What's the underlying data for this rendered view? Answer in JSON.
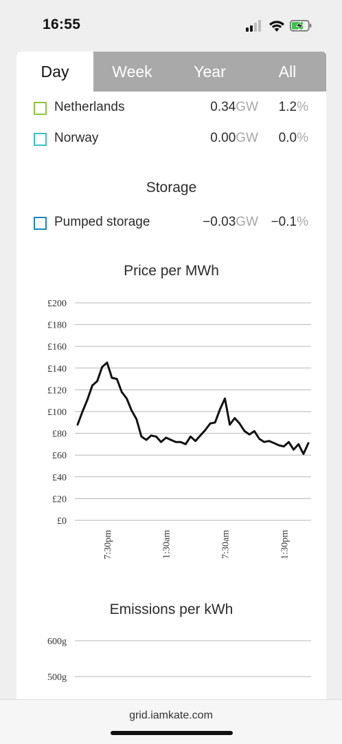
{
  "status": {
    "time": "16:55"
  },
  "tabs": [
    {
      "label": "Day",
      "active": true
    },
    {
      "label": "Week",
      "active": false
    },
    {
      "label": "Year",
      "active": false
    },
    {
      "label": "All",
      "active": false
    }
  ],
  "interconnectors": [
    {
      "name": "Netherlands",
      "value": "0.34",
      "unit": "GW",
      "percent": "1.2",
      "pct_unit": "%",
      "color": "#8cc63f"
    },
    {
      "name": "Norway",
      "value": "0.00",
      "unit": "GW",
      "percent": "0.0",
      "pct_unit": "%",
      "color": "#3cc0c0"
    }
  ],
  "storage": {
    "title": "Storage",
    "items": [
      {
        "name": "Pumped storage",
        "value": "−0.03",
        "unit": "GW",
        "percent": "−0.1",
        "pct_unit": "%",
        "color": "#1c86b8"
      }
    ]
  },
  "price_chart": {
    "title": "Price per MWh"
  },
  "emissions_chart": {
    "title": "Emissions per kWh"
  },
  "chart_data": [
    {
      "type": "line",
      "title": "Price per MWh",
      "ylim": [
        0,
        200
      ],
      "y_ticks": [
        "£200",
        "£180",
        "£160",
        "£140",
        "£120",
        "£100",
        "£80",
        "£60",
        "£40",
        "£20",
        "£0"
      ],
      "y_tick_values": [
        200,
        180,
        160,
        140,
        120,
        100,
        80,
        60,
        40,
        20,
        0
      ],
      "x_tick_labels": [
        "7:30pm",
        "1:30am",
        "7:30am",
        "1:30pm"
      ],
      "x_tick_index": [
        6,
        18,
        30,
        42
      ],
      "grid": true,
      "series": [
        {
          "values": [
            88,
            100,
            111,
            124,
            128,
            141,
            145,
            131,
            130,
            118,
            112,
            101,
            93,
            77,
            74,
            78,
            77,
            72,
            76,
            74,
            72,
            72,
            70,
            77,
            73,
            78,
            83,
            89,
            90,
            102,
            112,
            88,
            94,
            89,
            82,
            79,
            82,
            75,
            72,
            73,
            71,
            69,
            68,
            72,
            65,
            70,
            61,
            71
          ]
        }
      ]
    },
    {
      "type": "line",
      "title": "Emissions per kWh",
      "y_ticks": [
        "600g",
        "500g"
      ],
      "y_tick_values": [
        600,
        500
      ],
      "grid": true,
      "series": []
    }
  ],
  "footer": {
    "url": "grid.iamkate.com"
  }
}
